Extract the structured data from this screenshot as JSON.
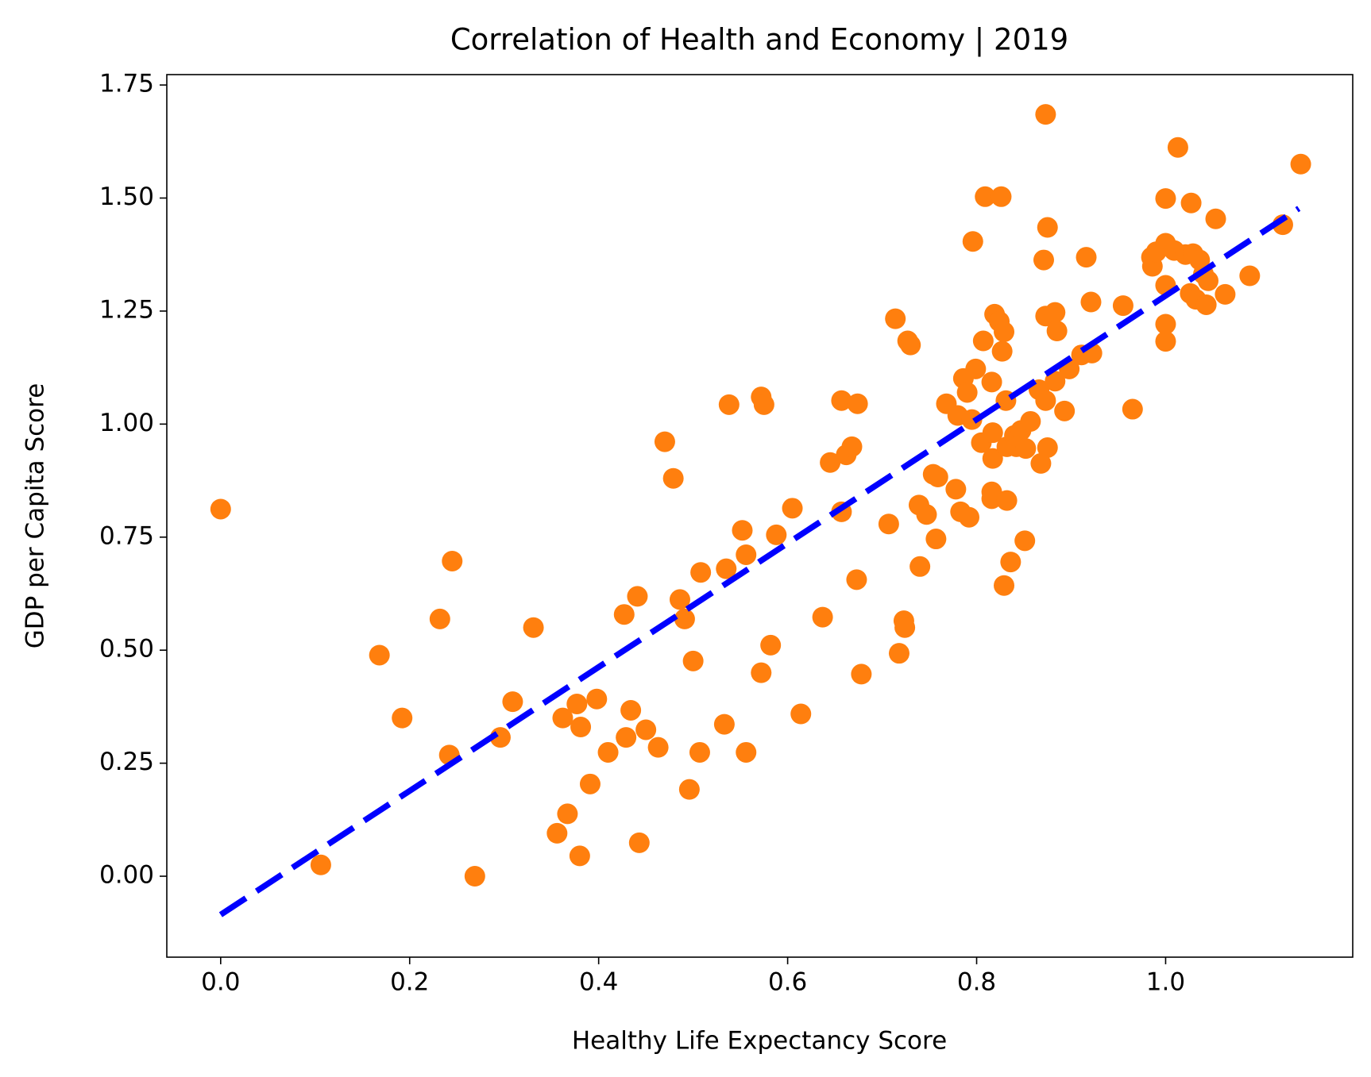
{
  "chart_data": {
    "type": "scatter",
    "title": "Correlation of Health and Economy | 2019",
    "x_label": "Healthy Life Expectancy Score",
    "y_label": "GDP per Capita Score",
    "color": "#ff7f0e",
    "x": [
      0,
      0.106,
      0.168,
      0.192,
      0.232,
      0.245,
      0.242,
      0.269,
      0.296,
      0.309,
      0.331,
      0.356,
      0.362,
      0.367,
      0.377,
      0.38,
      0.381,
      0.391,
      0.398,
      0.41,
      0.427,
      0.429,
      0.434,
      0.441,
      0.443,
      0.45,
      0.463,
      0.47,
      0.479,
      0.486,
      0.491,
      0.496,
      0.5,
      0.507,
      0.508,
      0.533,
      0.535,
      0.538,
      0.552,
      0.556,
      0.556,
      0.572,
      0.572,
      0.575,
      0.582,
      0.588,
      0.605,
      0.614,
      0.637,
      0.645,
      0.657,
      0.657,
      0.662,
      0.668,
      0.673,
      0.674,
      0.678,
      0.707,
      0.714,
      0.718,
      0.723,
      0.724,
      0.727,
      0.73,
      0.739,
      0.74,
      0.747,
      0.754,
      0.757,
      0.759,
      0.768,
      0.778,
      0.78,
      0.783,
      0.786,
      0.79,
      0.792,
      0.795,
      0.796,
      0.799,
      0.805,
      0.807,
      0.809,
      0.816,
      0.816,
      0.816,
      0.819,
      0.817,
      0.817,
      0.824,
      0.826,
      0.827,
      0.829,
      0.829,
      0.832,
      0.831,
      0.836,
      0.832,
      0.84,
      0.842,
      0.847,
      0.851,
      0.852,
      0.857,
      0.866,
      0.868,
      0.871,
      0.873,
      0.873,
      0.873,
      0.875,
      0.875,
      0.883,
      0.885,
      0.883,
      0.893,
      0.898,
      0.911,
      0.916,
      0.921,
      0.922,
      0.955,
      0.965,
      0.985,
      0.986,
      0.99,
      1.0,
      1.0,
      1.0,
      1.0,
      1.0,
      1.009,
      1.013,
      1.021,
      1.027,
      1.026,
      1.029,
      1.032,
      1.036,
      1.04,
      1.043,
      1.045,
      1.053,
      1.063,
      1.089,
      1.124,
      1.143
    ],
    "values": [
      0.812,
      0.025,
      0.489,
      0.35,
      0.569,
      0.697,
      0.268,
      0.0,
      0.307,
      0.386,
      0.55,
      0.095,
      0.35,
      0.138,
      0.381,
      0.045,
      0.33,
      0.204,
      0.392,
      0.274,
      0.579,
      0.307,
      0.367,
      0.619,
      0.074,
      0.324,
      0.285,
      0.961,
      0.88,
      0.612,
      0.569,
      0.192,
      0.476,
      0.274,
      0.672,
      0.336,
      0.68,
      1.043,
      0.765,
      0.274,
      0.711,
      0.45,
      1.06,
      1.043,
      0.511,
      0.755,
      0.814,
      0.359,
      0.573,
      0.915,
      0.806,
      1.052,
      0.932,
      0.95,
      0.656,
      1.045,
      0.447,
      0.779,
      1.233,
      0.493,
      0.565,
      0.55,
      1.184,
      1.175,
      0.821,
      0.685,
      0.8,
      0.889,
      0.746,
      0.883,
      1.045,
      0.856,
      1.019,
      0.806,
      1.101,
      1.07,
      0.794,
      1.01,
      1.404,
      1.122,
      0.959,
      1.184,
      1.503,
      1.093,
      0.835,
      0.85,
      1.243,
      0.981,
      0.924,
      1.227,
      1.503,
      1.161,
      1.204,
      0.643,
      0.831,
      1.052,
      0.695,
      0.95,
      0.975,
      0.95,
      0.986,
      0.742,
      0.946,
      1.006,
      1.076,
      0.913,
      1.363,
      1.685,
      1.239,
      1.052,
      0.948,
      1.435,
      1.247,
      1.206,
      1.095,
      1.029,
      1.122,
      1.153,
      1.369,
      1.27,
      1.157,
      1.262,
      1.033,
      1.369,
      1.349,
      1.381,
      1.499,
      1.4,
      1.221,
      1.183,
      1.307,
      1.384,
      1.612,
      1.375,
      1.489,
      1.289,
      1.377,
      1.276,
      1.363,
      1.332,
      1.264,
      1.317,
      1.454,
      1.287,
      1.328,
      1.441,
      1.575
    ],
    "trend_line": {
      "x": [
        0,
        1.141
      ],
      "values": [
        -0.085,
        1.477
      ],
      "color": "#0000ff"
    },
    "xlim": [
      -0.057,
      1.198
    ],
    "ylim": [
      -0.179,
      1.773
    ],
    "xticks": [
      {
        "value": 0,
        "label": "0.0"
      },
      0.2,
      0.4,
      0.6,
      0.8,
      {
        "value": 1,
        "label": "1.0"
      }
    ],
    "yticks": [
      {
        "value": 0,
        "label": "0.00"
      },
      0.25,
      {
        "value": 0.5,
        "label": "0.50"
      },
      0.75,
      {
        "value": 1,
        "label": "1.00"
      },
      1.25,
      {
        "value": 1.5,
        "label": "1.50"
      },
      1.75
    ],
    "grid": false
  }
}
